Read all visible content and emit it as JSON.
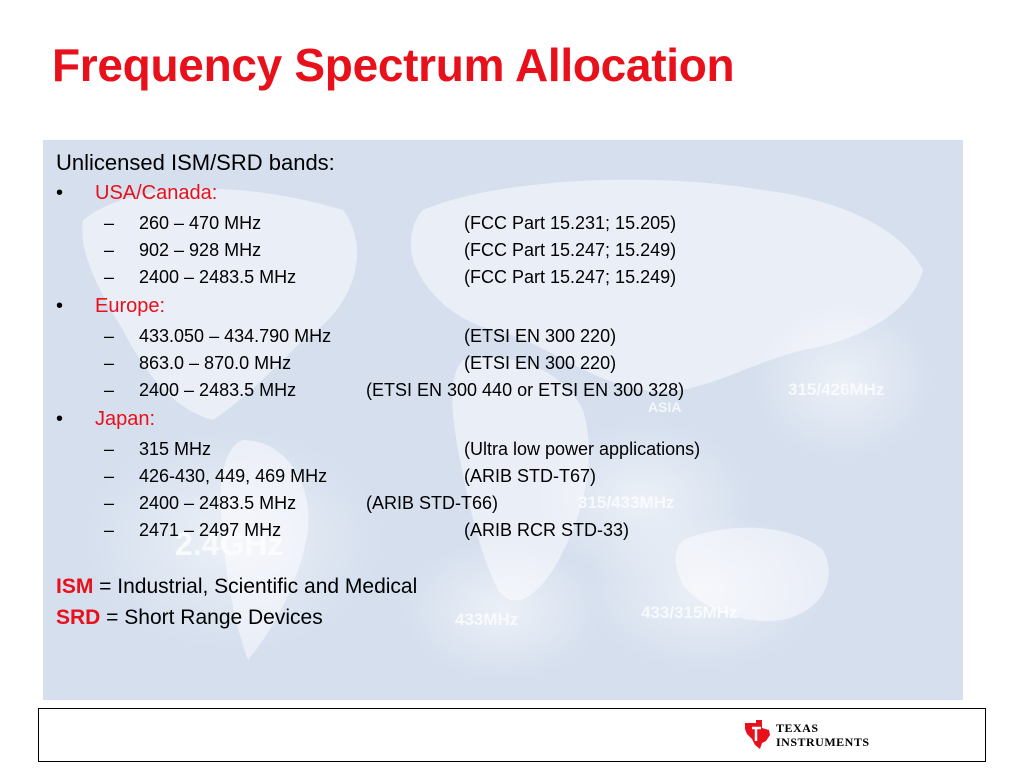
{
  "slide": {
    "title": "Frequency Spectrum Allocation",
    "intro": "Unlicensed ISM/SRD bands:",
    "regions": [
      {
        "name": "USA/Canada:",
        "bands": [
          {
            "range": "260 – 470 MHz",
            "ref": "(FCC Part 15.231; 15.205)"
          },
          {
            "range": "902 – 928 MHz",
            "ref": "(FCC Part 15.247; 15.249)"
          },
          {
            "range": "2400 – 2483.5 MHz",
            "ref": "(FCC Part 15.247; 15.249)"
          }
        ]
      },
      {
        "name": "Europe:",
        "bands": [
          {
            "range": "433.050 – 434.790 MHz",
            "ref": "(ETSI EN 300 220)"
          },
          {
            "range": "863.0 – 870.0 MHz",
            "ref": "(ETSI EN 300 220)"
          },
          {
            "range": "2400 – 2483.5 MHz",
            "ref": "(ETSI EN 300 440 or ETSI EN 300 328)"
          }
        ]
      },
      {
        "name": "Japan:",
        "bands": [
          {
            "range": "315 MHz",
            "ref": "(Ultra low power applications)"
          },
          {
            "range": "426-430, 449, 469 MHz",
            "ref": "(ARIB STD-T67)"
          },
          {
            "range": "2400 – 2483.5 MHz",
            "ref": "(ARIB STD-T66)"
          },
          {
            "range": "2471 – 2497 MHz",
            "ref": "(ARIB RCR STD-33)"
          }
        ]
      }
    ],
    "definitions": [
      {
        "abbr": "ISM",
        "text": " = Industrial, Scientific and Medical"
      },
      {
        "abbr": "SRD",
        "text": " = Short Range Devices"
      }
    ],
    "background_map_labels": {
      "bg_2_4ghz": "2.4GHz",
      "bg_asia": "ASIA",
      "bg_315_426": "315/426MHz",
      "bg_315_433": "315/433MHz",
      "bg_433": "433MHz",
      "bg_433_315": "433/315MHz"
    }
  },
  "footer": {
    "logo_line1": "TEXAS",
    "logo_line2": "INSTRUMENTS"
  },
  "colors": {
    "accent_red": "#e8101a",
    "panel_bg": "#d5dfee"
  }
}
